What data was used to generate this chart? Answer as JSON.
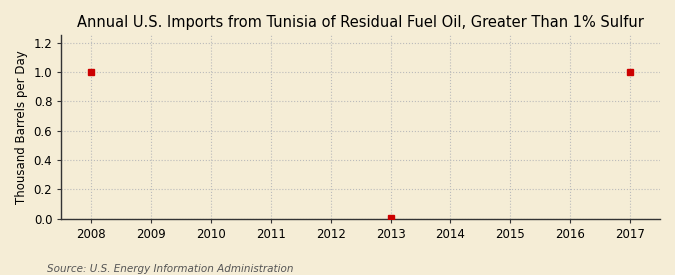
{
  "title": "Annual U.S. Imports from Tunisia of Residual Fuel Oil, Greater Than 1% Sulfur",
  "ylabel": "Thousand Barrels per Day",
  "source": "Source: U.S. Energy Information Administration",
  "background_color": "#F5EDD6",
  "plot_bg_color": "#F5EDD6",
  "grid_color": "#BBBBBB",
  "marker_color": "#CC0000",
  "spine_color": "#333333",
  "xlim": [
    2007.5,
    2017.5
  ],
  "ylim": [
    0.0,
    1.25
  ],
  "yticks": [
    0.0,
    0.2,
    0.4,
    0.6,
    0.8,
    1.0,
    1.2
  ],
  "xticks": [
    2008,
    2009,
    2010,
    2011,
    2012,
    2013,
    2014,
    2015,
    2016,
    2017
  ],
  "data_x": [
    2008,
    2013,
    2017
  ],
  "data_y": [
    1.0,
    0.003,
    1.0
  ],
  "title_fontsize": 10.5,
  "label_fontsize": 8.5,
  "tick_fontsize": 8.5,
  "source_fontsize": 7.5
}
